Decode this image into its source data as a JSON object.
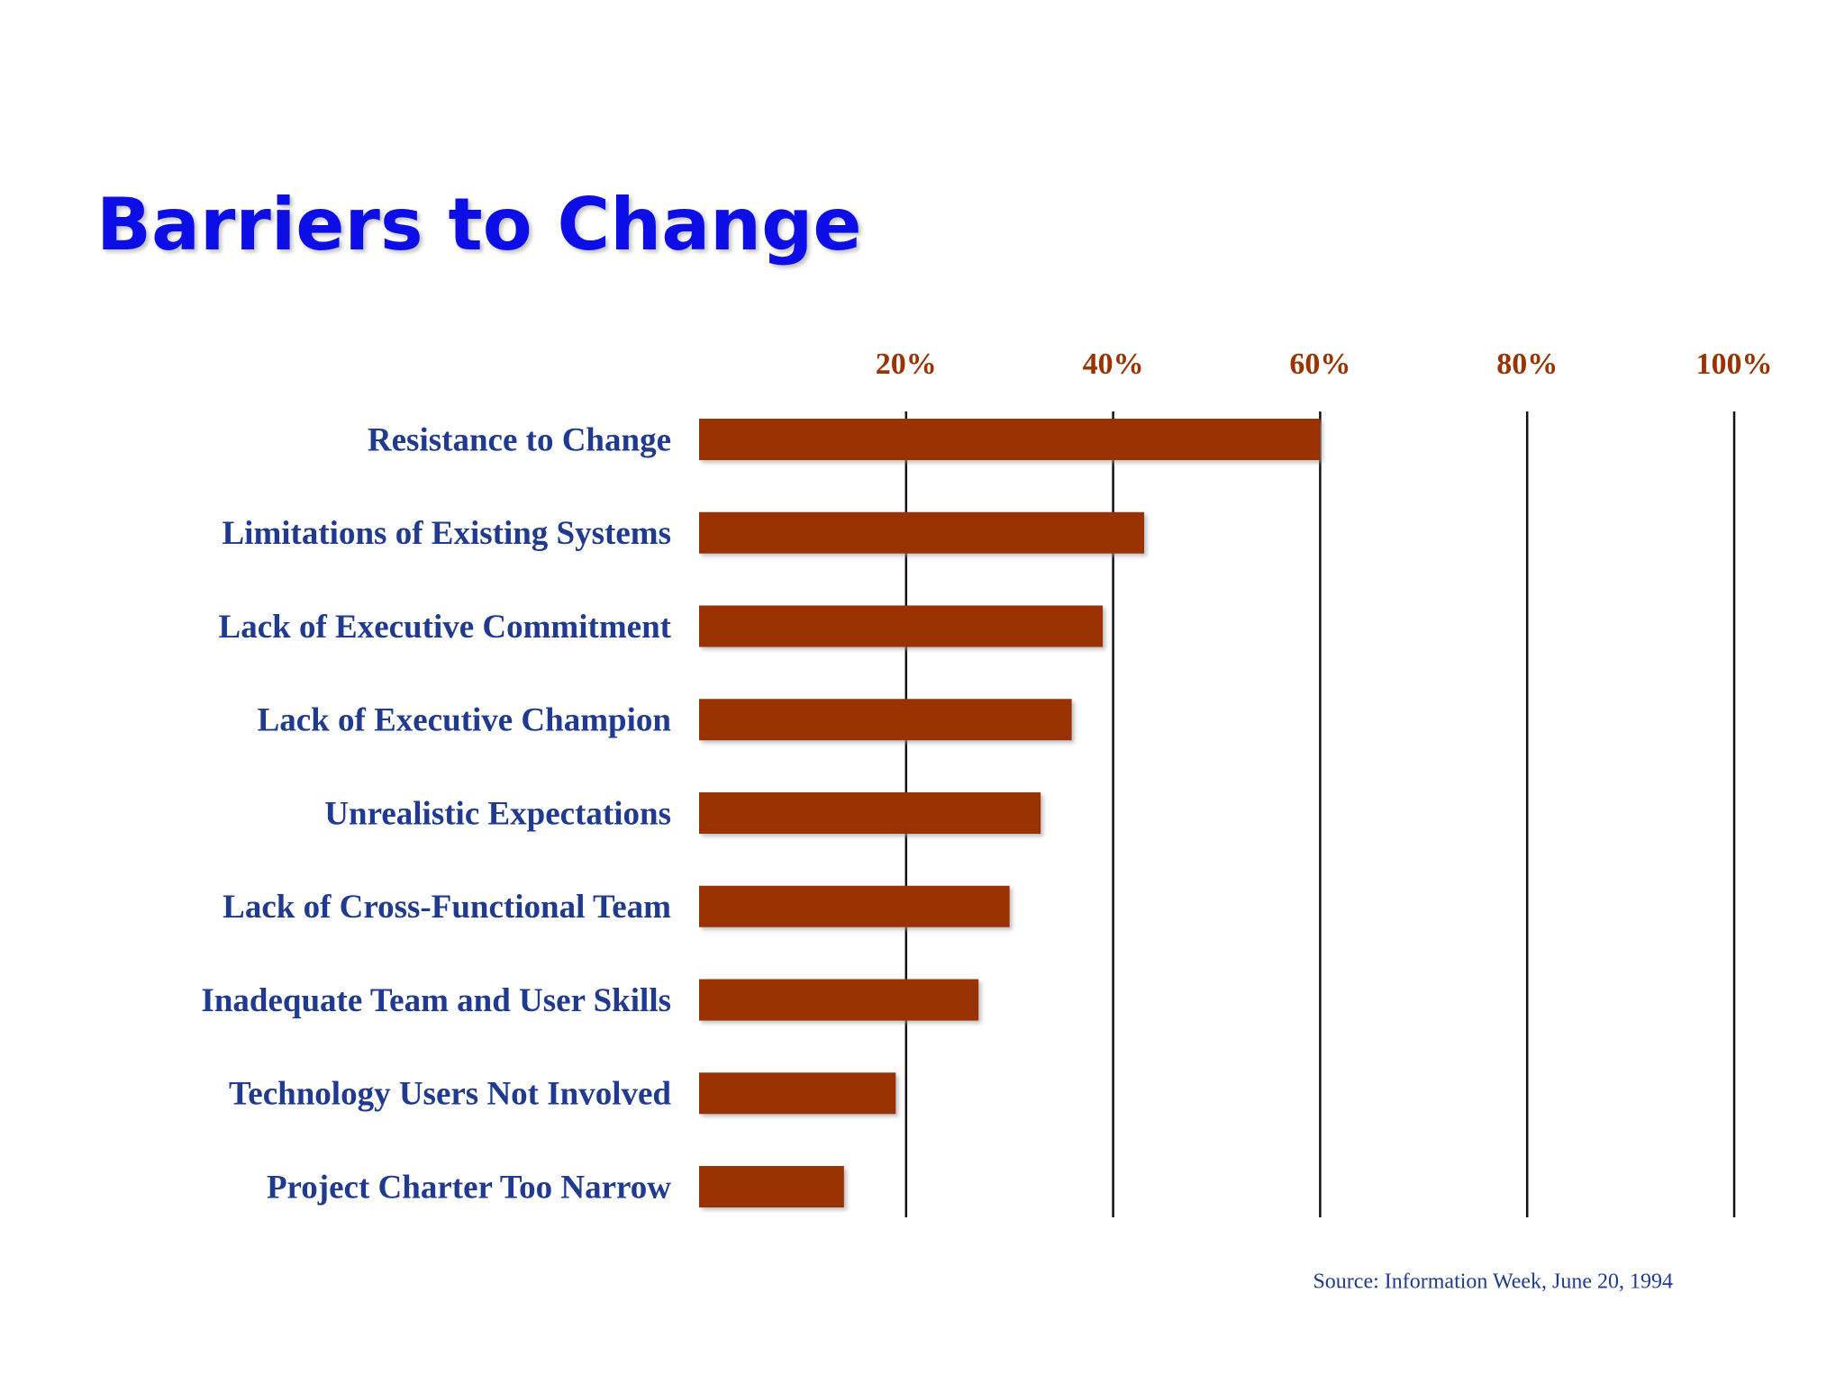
{
  "chart_data": {
    "type": "bar",
    "orientation": "horizontal",
    "title": "Barriers to Change",
    "source": "Source: Information Week, June 20, 1994",
    "categories": [
      "Resistance to Change",
      "Limitations of Existing Systems",
      "Lack of Executive Commitment",
      "Lack of Executive Champion",
      "Unrealistic Expectations",
      "Lack of Cross-Functional Team",
      "Inadequate Team and User Skills",
      "Technology Users Not Involved",
      "Project Charter Too Narrow"
    ],
    "values": [
      60,
      43,
      39,
      36,
      33,
      30,
      27,
      19,
      14
    ],
    "color": "#993300",
    "xlim": [
      0,
      100
    ],
    "xticks": [
      {
        "value": 20,
        "label": "20%"
      },
      {
        "value": 40,
        "label": "40%"
      },
      {
        "value": 60,
        "label": "60%"
      },
      {
        "value": 80,
        "label": "80%"
      },
      {
        "value": 100,
        "label": "100%"
      }
    ],
    "grid": true
  }
}
